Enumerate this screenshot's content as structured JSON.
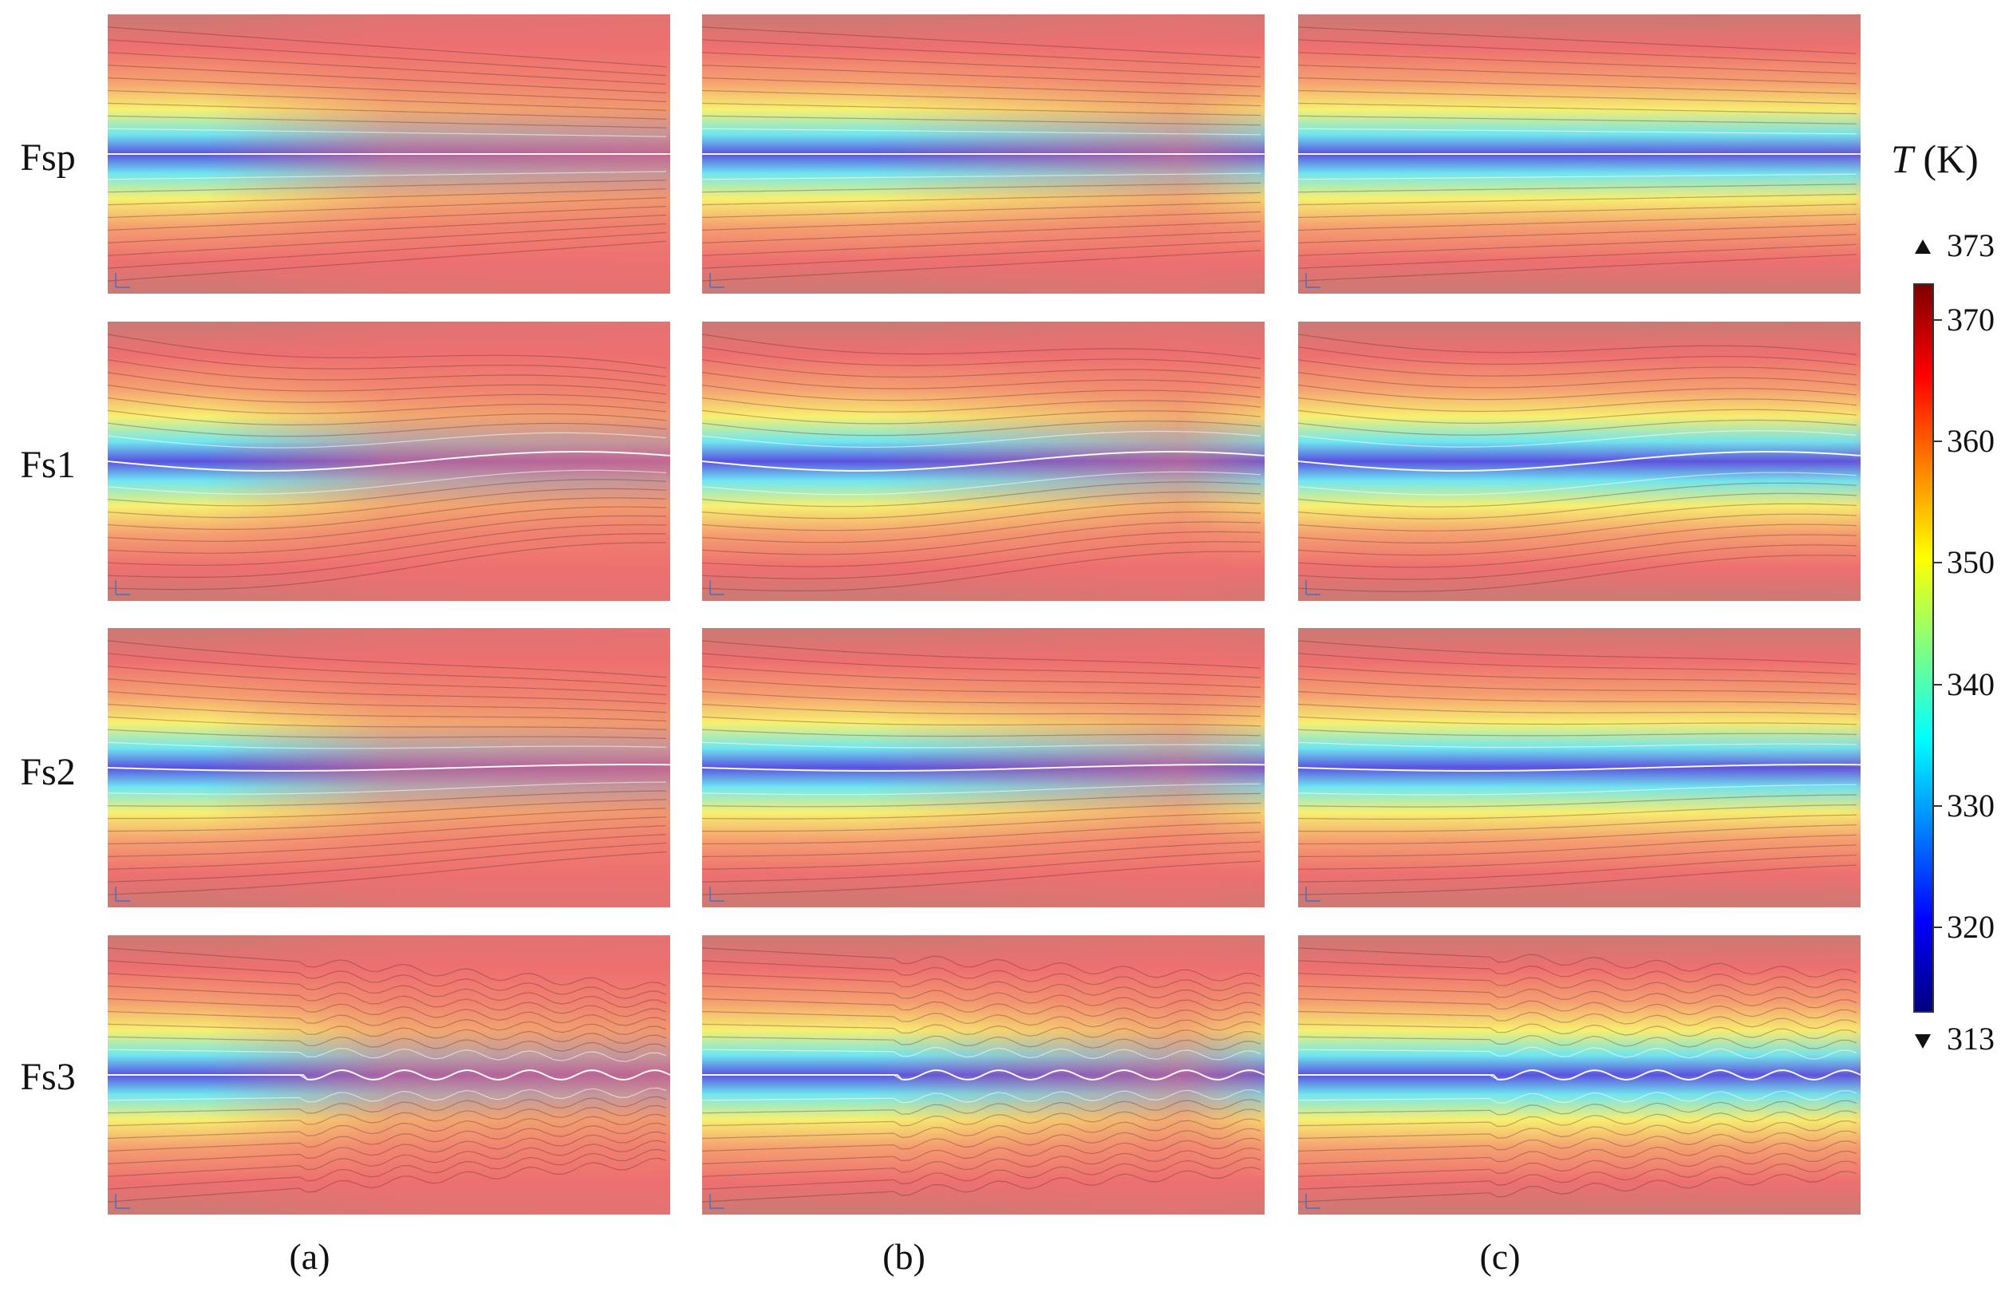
{
  "rows": [
    {
      "id": "fsp",
      "label": "Fsp",
      "wave": 0
    },
    {
      "id": "fs1",
      "label": "Fs1",
      "wave": 1
    },
    {
      "id": "fs2",
      "label": "Fs2",
      "wave": 2
    },
    {
      "id": "fs3",
      "label": "Fs3",
      "wave": 3
    }
  ],
  "columns": [
    {
      "id": "a",
      "label": "(a)",
      "cool_extent": 0.5
    },
    {
      "id": "b",
      "label": "(b)",
      "cool_extent": 0.85
    },
    {
      "id": "c",
      "label": "(c)",
      "cool_extent": 1.0
    }
  ],
  "colorbar": {
    "title_symbol": "T",
    "title_unit": " (K)",
    "max_label": "373",
    "min_label": "313",
    "min": 313,
    "max": 373,
    "ticks": [
      {
        "value": 370,
        "label": "370"
      },
      {
        "value": 360,
        "label": "360"
      },
      {
        "value": 350,
        "label": "350"
      },
      {
        "value": 340,
        "label": "340"
      },
      {
        "value": 330,
        "label": "330"
      },
      {
        "value": 320,
        "label": "320"
      }
    ],
    "colors": [
      "#00007f",
      "#0000ff",
      "#0080ff",
      "#00ffff",
      "#80ff80",
      "#ffff00",
      "#ff8000",
      "#ff0000",
      "#7f0000"
    ]
  },
  "field_colors": {
    "core": "#5a52e0",
    "cyan": "#6fe6f0",
    "yellow": "#f7f070",
    "orange": "#f5a070",
    "red": "#ee7070",
    "edge": "#c97a74"
  }
}
